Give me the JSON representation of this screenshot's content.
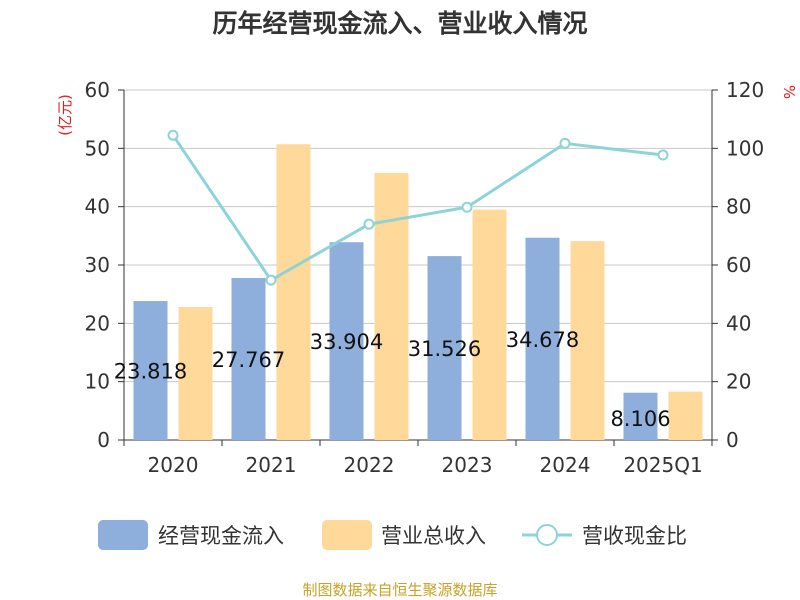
{
  "chart_data": {
    "type": "bar",
    "title": "历年经营现金流入、营业收入情况",
    "categories": [
      "2020",
      "2021",
      "2022",
      "2023",
      "2024",
      "2025Q1"
    ],
    "series": [
      {
        "name": "经营现金流入",
        "type": "bar",
        "axis": "left",
        "color": "#8eaedb",
        "values": [
          23.818,
          27.767,
          33.904,
          31.526,
          34.678,
          8.106
        ]
      },
      {
        "name": "营业总收入",
        "type": "bar",
        "axis": "left",
        "color": "#ffd999",
        "values": [
          22.8,
          50.7,
          45.8,
          39.5,
          34.1,
          8.3
        ]
      },
      {
        "name": "营收现金比",
        "type": "line",
        "axis": "right",
        "color": "#8dd3d8",
        "values": [
          104.5,
          54.8,
          74.0,
          79.8,
          101.7,
          97.7
        ]
      }
    ],
    "left_axis": {
      "label": "(亿元)",
      "min": 0,
      "max": 60,
      "ticks": [
        0,
        10,
        20,
        30,
        40,
        50,
        60
      ],
      "label_color": "#e02020"
    },
    "right_axis": {
      "label": "%",
      "min": 0,
      "max": 120,
      "ticks": [
        0,
        20,
        40,
        60,
        80,
        100,
        120
      ],
      "label_color": "#e02020"
    },
    "data_labels": [
      "23.818",
      "27.767",
      "33.904",
      "31.526",
      "34.678",
      "8.106"
    ],
    "grid": true,
    "legend_position": "bottom",
    "source": "制图数据来自恒生聚源数据库"
  }
}
